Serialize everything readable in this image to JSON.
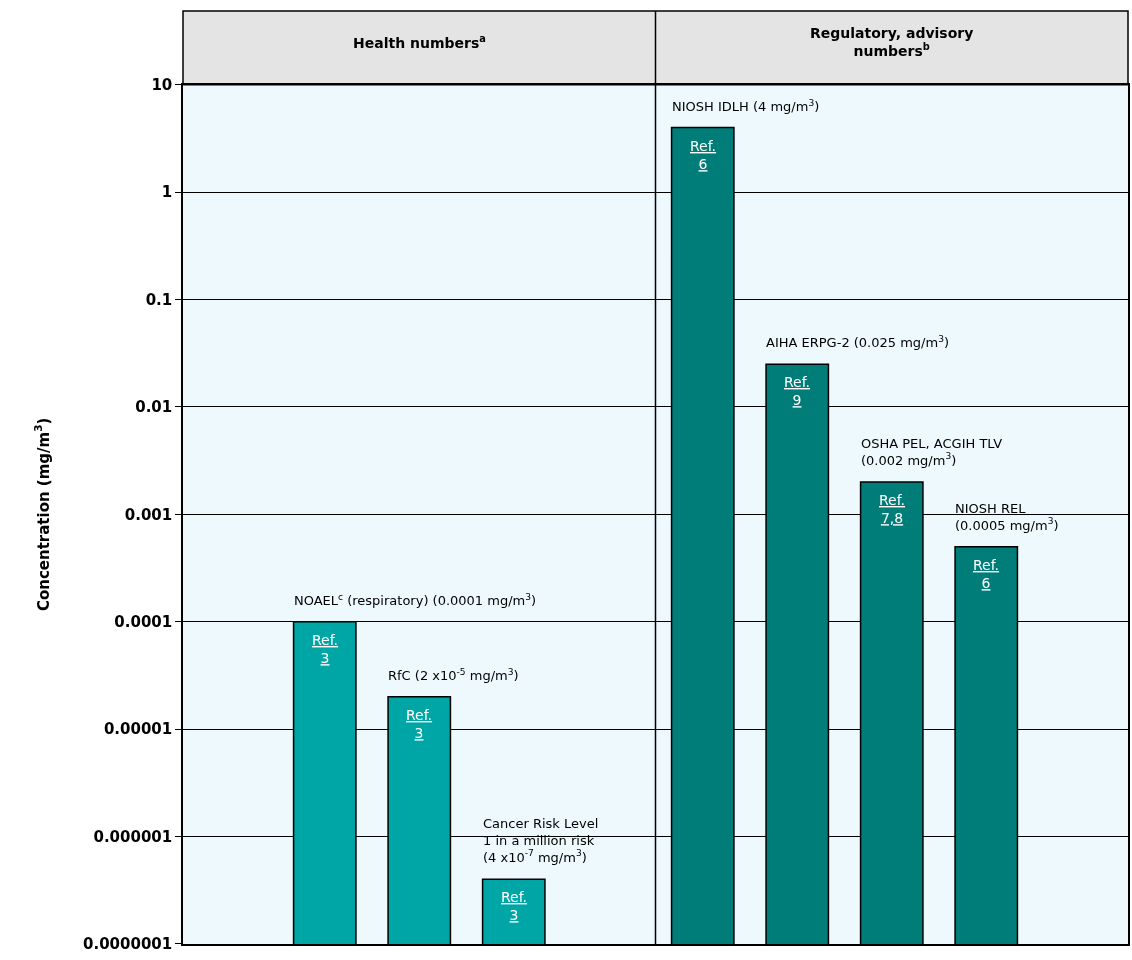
{
  "chart_data": {
    "type": "bar",
    "ylabel": "Concentration (mg/m$^{3}$)",
    "categories": [
      null,
      null,
      null,
      null,
      null,
      null,
      null,
      null,
      null,
      null
    ],
    "values": [
      null,
      0.0001,
      2e-05,
      4e-07,
      null,
      4,
      0.025,
      0.002,
      0.0005,
      null
    ],
    "colors": [
      "#00a6a6",
      "#00a6a6",
      "#00a6a6",
      "#00a6a6",
      "#007d78",
      "#007d78",
      "#007d78",
      "#007d78",
      "#007d78",
      "#007d78"
    ],
    "annotations": [
      "Health numbers$^{a}$",
      "Regulatory, advisory\nnumbers$^{b}$",
      "NOAEL$^{c}$ (respiratory) (0.0001 mg/m$^{3}$)",
      "RfC (2 x10$^{-5}$ mg/m$^{3}$)",
      "Cancer Risk Level\n1 in a million risk\n(4 x10$^{-7}$ mg/m$^{3}$)",
      "NIOSH IDLH (4 mg/m$^{3}$)",
      "AIHA ERPG-2 (0.025 mg/m$^{3}$)",
      "OSHA PEL, ACGIH TLV\n(0.002 mg/m$^{3}$)",
      "NIOSH REL\n(0.0005 mg/m$^{3}$)",
      "Ref.\n3",
      "Ref.\n3",
      "Ref.\n3",
      "Ref.\n6",
      "Ref.\n9",
      "Ref.\n7,8",
      "Ref.\n6"
    ],
    "log": true,
    "ylim": [
      1e-07,
      10
    ],
    "yticks": [
      {
        "value": 1e-07,
        "label": "0.0000001"
      },
      {
        "value": 1e-06,
        "label": "0.000001"
      },
      {
        "value": 1e-05,
        "label": "0.00001"
      },
      {
        "value": 0.0001,
        "label": "0.0001"
      },
      0.001,
      0.01,
      0.1,
      1,
      10
    ],
    "grid": "y",
    "legend": false
  }
}
